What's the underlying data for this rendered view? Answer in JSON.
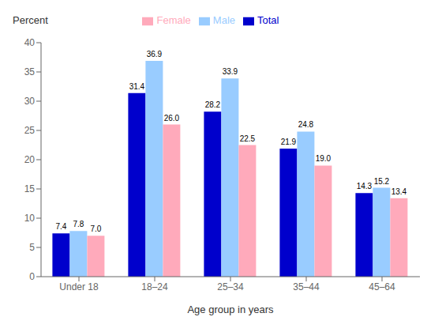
{
  "chart_data": {
    "type": "bar",
    "categories": [
      "Under 18",
      "18–24",
      "25–34",
      "35–44",
      "45–64"
    ],
    "series": [
      {
        "name": "Total",
        "color": "#0000cc",
        "values": [
          7.4,
          31.4,
          28.2,
          21.9,
          14.3
        ]
      },
      {
        "name": "Male",
        "color": "#99ccff",
        "values": [
          7.8,
          36.9,
          33.9,
          24.8,
          15.2
        ]
      },
      {
        "name": "Female",
        "color": "#ffaabb",
        "values": [
          7.0,
          26.0,
          22.5,
          19.0,
          13.4
        ],
        "value_labels": [
          "7.0",
          "26.0",
          "22.5",
          "19.0",
          "13.4"
        ]
      }
    ],
    "xlabel": "Age group in years",
    "ylabel": "Percent",
    "ylim": [
      0,
      40
    ],
    "yticks": [
      0,
      5,
      10,
      15,
      20,
      25,
      30,
      35,
      40
    ],
    "data_labels": true,
    "grid": false,
    "legend": "top"
  }
}
